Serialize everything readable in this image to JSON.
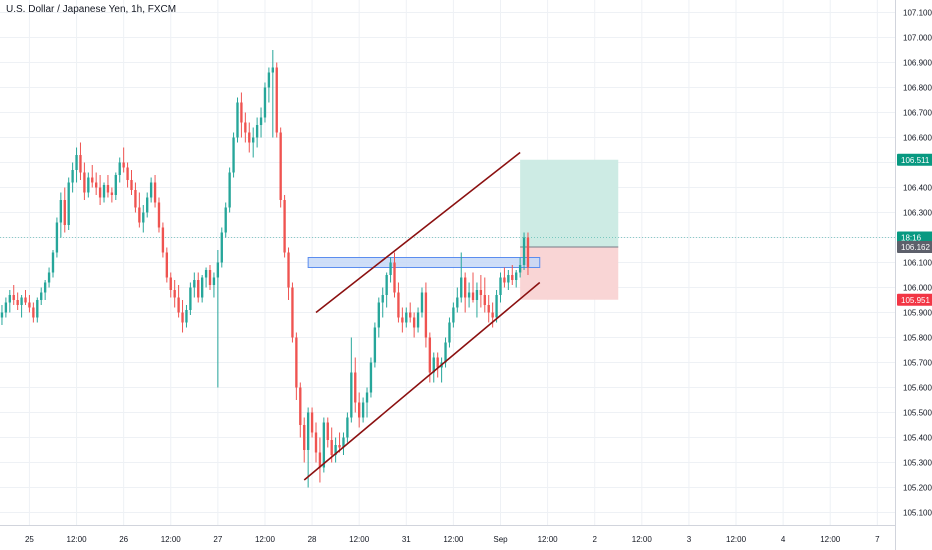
{
  "header": {
    "title": "U.S. Dollar / Japanese Yen, 1h, FXCM"
  },
  "colors": {
    "up": "#26a69a",
    "down": "#ef5350",
    "grid": "#eef1f5",
    "channel": "#8b1010",
    "zone_fill": "#c5d8f7",
    "zone_border": "#5b8def",
    "target_fill": "#cdebe4",
    "stop_fill": "#f9d5d5",
    "tag_green": "#089981",
    "tag_red": "#f23645",
    "tag_gray": "#5d606b"
  },
  "chart_data": {
    "type": "candlestick",
    "ylim": [
      105.05,
      107.15
    ],
    "y_ticks": [
      105.1,
      105.2,
      105.3,
      105.4,
      105.5,
      105.6,
      105.7,
      105.8,
      105.9,
      106.0,
      106.1,
      106.2,
      106.3,
      106.4,
      106.5,
      106.6,
      106.7,
      106.8,
      106.9,
      107.0,
      107.1
    ],
    "y_tick_labels": [
      "105.100",
      "105.200",
      "105.300",
      "105.400",
      "105.500",
      "105.600",
      "105.700",
      "105.800",
      "105.900",
      "106.000",
      "106.100",
      "106.200",
      "106.300",
      "106.400",
      "106.500",
      "106.600",
      "106.700",
      "106.800",
      "106.900",
      "107.000",
      "107.100"
    ],
    "x_tick_labels": [
      "25",
      "12:00",
      "26",
      "12:00",
      "27",
      "12:00",
      "28",
      "12:00",
      "31",
      "12:00",
      "Sep",
      "12:00",
      "2",
      "12:00",
      "3",
      "12:00",
      "4",
      "12:00",
      "7"
    ],
    "x_tick_index": [
      7,
      19,
      31,
      43,
      55,
      67,
      79,
      91,
      103,
      115,
      127,
      139,
      151,
      163,
      175,
      187,
      199,
      211,
      223
    ],
    "candles_total_slots": 228,
    "candles": [
      [
        105.88,
        105.93,
        105.85,
        105.9
      ],
      [
        105.9,
        105.96,
        105.88,
        105.94
      ],
      [
        105.94,
        105.99,
        105.9,
        105.97
      ],
      [
        105.97,
        106.01,
        105.93,
        105.95
      ],
      [
        105.95,
        105.98,
        105.91,
        105.93
      ],
      [
        105.93,
        105.97,
        105.88,
        105.96
      ],
      [
        105.96,
        105.99,
        105.93,
        105.94
      ],
      [
        105.94,
        105.97,
        105.9,
        105.92
      ],
      [
        105.92,
        105.94,
        105.86,
        105.88
      ],
      [
        105.88,
        105.96,
        105.86,
        105.95
      ],
      [
        105.95,
        106.0,
        105.93,
        105.98
      ],
      [
        105.98,
        106.03,
        105.95,
        106.02
      ],
      [
        106.02,
        106.08,
        106.0,
        106.06
      ],
      [
        106.06,
        106.15,
        106.04,
        106.14
      ],
      [
        106.14,
        106.28,
        106.12,
        106.26
      ],
      [
        106.26,
        106.38,
        106.2,
        106.35
      ],
      [
        106.35,
        106.4,
        106.22,
        106.25
      ],
      [
        106.25,
        106.44,
        106.23,
        106.42
      ],
      [
        106.42,
        106.5,
        106.38,
        106.47
      ],
      [
        106.47,
        106.56,
        106.42,
        106.53
      ],
      [
        106.53,
        106.58,
        106.43,
        106.46
      ],
      [
        106.46,
        106.5,
        106.35,
        106.38
      ],
      [
        106.38,
        106.46,
        106.36,
        106.44
      ],
      [
        106.44,
        106.49,
        106.4,
        106.42
      ],
      [
        106.42,
        106.46,
        106.37,
        106.4
      ],
      [
        106.4,
        106.45,
        106.33,
        106.36
      ],
      [
        106.36,
        106.42,
        106.34,
        106.41
      ],
      [
        106.41,
        106.45,
        106.36,
        106.38
      ],
      [
        106.38,
        106.4,
        106.34,
        106.37
      ],
      [
        106.37,
        106.46,
        106.35,
        106.45
      ],
      [
        106.45,
        106.52,
        106.42,
        106.5
      ],
      [
        106.5,
        106.56,
        106.46,
        106.48
      ],
      [
        106.48,
        106.5,
        106.4,
        106.43
      ],
      [
        106.43,
        106.47,
        106.37,
        106.39
      ],
      [
        106.39,
        106.42,
        106.3,
        106.32
      ],
      [
        106.32,
        106.38,
        106.24,
        106.26
      ],
      [
        106.26,
        106.33,
        106.22,
        106.3
      ],
      [
        106.3,
        106.38,
        106.28,
        106.36
      ],
      [
        106.36,
        106.44,
        106.34,
        106.42
      ],
      [
        106.42,
        106.45,
        106.32,
        106.34
      ],
      [
        106.34,
        106.36,
        106.22,
        106.24
      ],
      [
        106.24,
        106.26,
        106.12,
        106.14
      ],
      [
        106.14,
        106.16,
        106.02,
        106.04
      ],
      [
        106.04,
        106.06,
        105.96,
        105.99
      ],
      [
        105.99,
        106.03,
        105.92,
        105.96
      ],
      [
        105.96,
        106.01,
        105.88,
        105.9
      ],
      [
        105.9,
        105.95,
        105.82,
        105.86
      ],
      [
        105.86,
        105.93,
        105.84,
        105.91
      ],
      [
        105.91,
        106.02,
        105.89,
        106.0
      ],
      [
        106.0,
        106.06,
        105.96,
        106.03
      ],
      [
        106.03,
        106.06,
        105.94,
        105.96
      ],
      [
        105.96,
        106.05,
        105.94,
        106.04
      ],
      [
        106.04,
        106.08,
        106.0,
        106.07
      ],
      [
        106.07,
        106.09,
        105.99,
        106.01
      ],
      [
        106.01,
        106.06,
        105.96,
        106.04
      ],
      [
        106.04,
        106.15,
        105.6,
        106.1
      ],
      [
        106.1,
        106.24,
        106.08,
        106.22
      ],
      [
        106.22,
        106.34,
        106.2,
        106.32
      ],
      [
        106.32,
        106.48,
        106.3,
        106.46
      ],
      [
        106.46,
        106.62,
        106.44,
        106.6
      ],
      [
        106.6,
        106.76,
        106.58,
        106.74
      ],
      [
        106.74,
        106.78,
        106.6,
        106.66
      ],
      [
        106.66,
        106.7,
        106.58,
        106.62
      ],
      [
        106.62,
        106.66,
        106.54,
        106.58
      ],
      [
        106.58,
        106.64,
        106.52,
        106.6
      ],
      [
        106.6,
        106.68,
        106.56,
        106.65
      ],
      [
        106.65,
        106.72,
        106.6,
        106.68
      ],
      [
        106.68,
        106.82,
        106.66,
        106.8
      ],
      [
        106.8,
        106.88,
        106.74,
        106.86
      ],
      [
        106.86,
        106.95,
        106.6,
        106.88
      ],
      [
        106.88,
        106.9,
        106.6,
        106.62
      ],
      [
        106.62,
        106.64,
        106.32,
        106.35
      ],
      [
        106.35,
        106.37,
        106.12,
        106.14
      ],
      [
        106.14,
        106.16,
        105.95,
        106.0
      ],
      [
        106.0,
        106.02,
        105.78,
        105.8
      ],
      [
        105.8,
        105.82,
        105.55,
        105.6
      ],
      [
        105.6,
        105.62,
        105.4,
        105.45
      ],
      [
        105.45,
        105.48,
        105.3,
        105.35
      ],
      [
        105.35,
        105.52,
        105.2,
        105.5
      ],
      [
        105.5,
        105.52,
        105.4,
        105.42
      ],
      [
        105.42,
        105.46,
        105.3,
        105.34
      ],
      [
        105.34,
        105.4,
        105.22,
        105.28
      ],
      [
        105.28,
        105.48,
        105.26,
        105.46
      ],
      [
        105.46,
        105.48,
        105.36,
        105.39
      ],
      [
        105.39,
        105.44,
        105.3,
        105.33
      ],
      [
        105.33,
        105.4,
        105.3,
        105.37
      ],
      [
        105.37,
        105.42,
        105.34,
        105.36
      ],
      [
        105.36,
        105.42,
        105.33,
        105.4
      ],
      [
        105.4,
        105.5,
        105.38,
        105.48
      ],
      [
        105.48,
        105.8,
        105.46,
        105.66
      ],
      [
        105.66,
        105.72,
        105.5,
        105.54
      ],
      [
        105.54,
        105.58,
        105.44,
        105.48
      ],
      [
        105.48,
        105.56,
        105.46,
        105.54
      ],
      [
        105.54,
        105.6,
        105.48,
        105.58
      ],
      [
        105.58,
        105.72,
        105.56,
        105.7
      ],
      [
        105.7,
        105.86,
        105.68,
        105.84
      ],
      [
        105.84,
        105.96,
        105.8,
        105.94
      ],
      [
        105.94,
        106.0,
        105.88,
        105.97
      ],
      [
        105.97,
        106.06,
        105.92,
        106.05
      ],
      [
        106.05,
        106.12,
        106.02,
        106.1
      ],
      [
        106.1,
        106.14,
        105.96,
        105.98
      ],
      [
        105.98,
        106.02,
        105.86,
        105.88
      ],
      [
        105.88,
        105.92,
        105.82,
        105.86
      ],
      [
        105.86,
        105.92,
        105.84,
        105.9
      ],
      [
        105.9,
        105.94,
        105.86,
        105.88
      ],
      [
        105.88,
        105.9,
        105.8,
        105.84
      ],
      [
        105.84,
        105.92,
        105.82,
        105.9
      ],
      [
        105.9,
        106.0,
        105.88,
        105.98
      ],
      [
        105.98,
        106.02,
        105.76,
        105.8
      ],
      [
        105.8,
        105.82,
        105.62,
        105.66
      ],
      [
        105.66,
        105.74,
        105.62,
        105.72
      ],
      [
        105.72,
        105.74,
        105.64,
        105.68
      ],
      [
        105.68,
        105.72,
        105.62,
        105.7
      ],
      [
        105.7,
        105.8,
        105.68,
        105.78
      ],
      [
        105.78,
        105.88,
        105.76,
        105.86
      ],
      [
        105.86,
        105.94,
        105.84,
        105.92
      ],
      [
        105.92,
        106.0,
        105.9,
        105.96
      ],
      [
        105.96,
        106.14,
        105.94,
        106.04
      ],
      [
        106.04,
        106.06,
        105.9,
        105.96
      ],
      [
        105.96,
        106.02,
        105.92,
        105.98
      ],
      [
        105.98,
        106.06,
        105.94,
        105.95
      ],
      [
        105.95,
        106.02,
        105.88,
        105.99
      ],
      [
        105.99,
        106.05,
        105.92,
        105.97
      ],
      [
        105.97,
        106.04,
        105.9,
        105.93
      ],
      [
        105.93,
        105.97,
        105.86,
        105.9
      ],
      [
        105.9,
        105.94,
        105.84,
        105.88
      ],
      [
        105.88,
        105.99,
        105.86,
        105.97
      ],
      [
        105.97,
        106.06,
        105.94,
        106.04
      ],
      [
        106.04,
        106.08,
        106.0,
        106.02
      ],
      [
        106.02,
        106.07,
        105.99,
        106.05
      ],
      [
        106.05,
        106.09,
        106.01,
        106.03
      ],
      [
        106.03,
        106.07,
        106.0,
        106.06
      ],
      [
        106.06,
        106.12,
        106.04,
        106.09
      ],
      [
        106.09,
        106.22,
        106.07,
        106.2
      ],
      [
        106.2,
        106.22,
        106.05,
        106.08
      ]
    ],
    "resistance_zone": {
      "i0": 78,
      "i1": 137,
      "low": 106.08,
      "high": 106.12
    },
    "channel_upper": [
      [
        80,
        105.9
      ],
      [
        132,
        106.54
      ]
    ],
    "channel_lower": [
      [
        77,
        105.23
      ],
      [
        137,
        106.02
      ]
    ],
    "position": {
      "i0": 132,
      "i1": 157,
      "entry": 106.162,
      "target": 106.511,
      "stop": 105.951
    },
    "price_tags": [
      {
        "value": 106.511,
        "label": "106.511",
        "kind": "target"
      },
      {
        "value": 106.2,
        "label": "18:16",
        "kind": "countdown"
      },
      {
        "value": 106.162,
        "label": "106.162",
        "kind": "entry"
      },
      {
        "value": 105.951,
        "label": "105.951",
        "kind": "stop"
      }
    ]
  }
}
